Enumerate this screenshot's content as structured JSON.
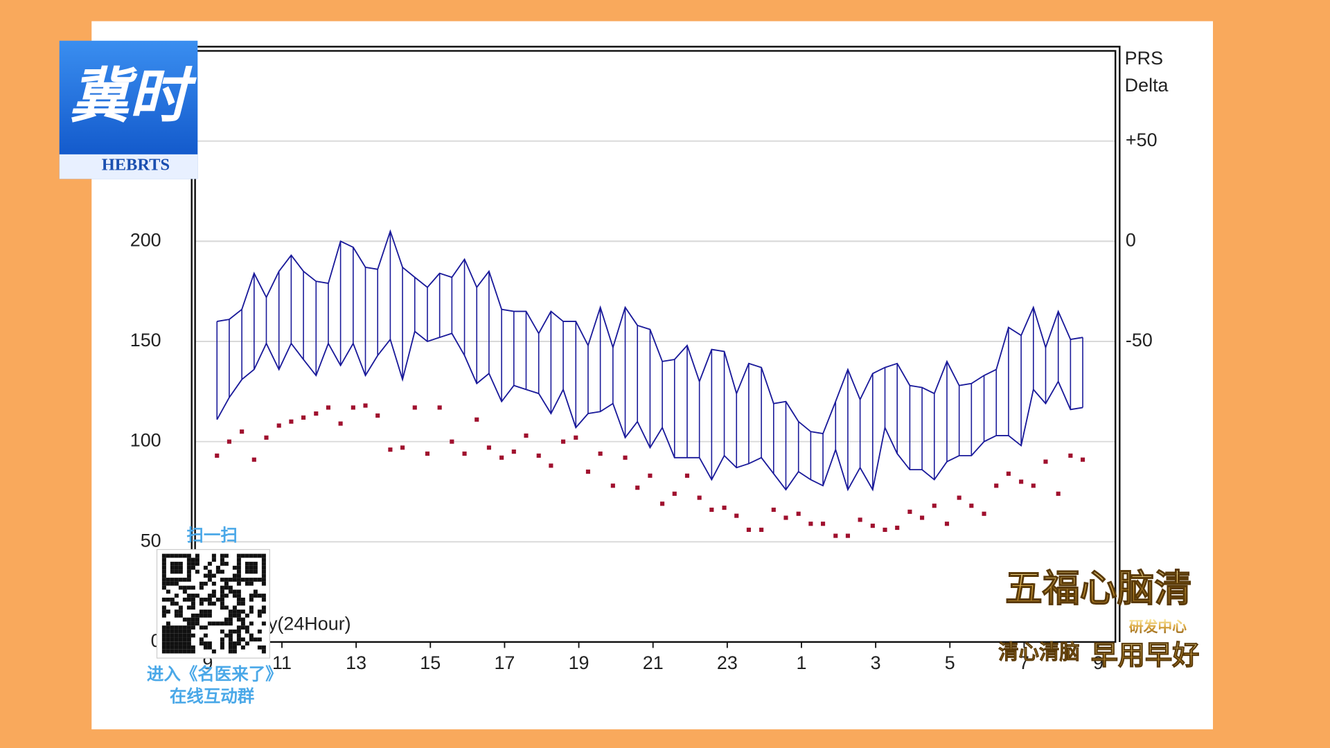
{
  "chart_data": {
    "type": "range",
    "x": [
      9.25,
      9.58,
      9.92,
      10.25,
      10.58,
      10.92,
      11.25,
      11.58,
      11.92,
      12.25,
      12.58,
      12.92,
      13.25,
      13.58,
      13.92,
      14.25,
      14.58,
      14.92,
      15.25,
      15.58,
      15.92,
      16.25,
      16.58,
      16.92,
      17.25,
      17.58,
      17.92,
      18.25,
      18.58,
      18.92,
      19.25,
      19.58,
      19.92,
      20.25,
      20.58,
      20.92,
      21.25,
      21.58,
      21.92,
      22.25,
      22.58,
      22.92,
      23.25,
      23.58,
      23.92,
      24.25,
      24.58,
      24.92,
      25.25,
      25.58,
      25.92,
      26.25,
      26.58,
      26.92,
      27.25,
      27.58,
      27.92,
      28.25,
      28.58,
      28.92,
      29.25,
      29.58,
      29.92,
      30.25,
      30.58,
      30.92,
      31.25,
      31.58,
      31.92,
      32.25,
      32.58
    ],
    "series": [
      {
        "color": "#1a1a9a",
        "values": [
          160,
          161,
          166,
          184,
          172,
          185,
          193,
          185,
          180,
          179,
          200,
          197,
          187,
          186,
          205,
          187,
          182,
          177,
          184,
          182,
          191,
          177,
          185,
          166,
          165,
          165,
          154,
          165,
          160,
          160,
          148,
          167,
          147,
          167,
          158,
          156,
          140,
          141,
          148,
          130,
          146,
          145,
          124,
          139,
          137,
          119,
          120,
          110,
          105,
          104,
          120,
          136,
          121,
          134,
          137,
          139,
          128,
          127,
          124,
          140,
          128,
          129,
          133,
          136,
          157,
          153,
          167,
          147,
          165,
          151,
          152
        ]
      },
      {
        "color": "#1a1a9a",
        "values": [
          111,
          122,
          131,
          136,
          149,
          136,
          149,
          141,
          133,
          149,
          138,
          149,
          133,
          143,
          151,
          131,
          155,
          150,
          152,
          154,
          143,
          129,
          134,
          120,
          128,
          126,
          124,
          114,
          126,
          107,
          114,
          115,
          119,
          102,
          110,
          97,
          107,
          92,
          92,
          92,
          81,
          93,
          87,
          89,
          92,
          84,
          76,
          85,
          81,
          78,
          96,
          76,
          87,
          76,
          107,
          94,
          86,
          86,
          81,
          90,
          93,
          93,
          100,
          103,
          103,
          98,
          126,
          119,
          130,
          116,
          117
        ]
      },
      {
        "color": "#a0102e",
        "values": [
          93,
          100,
          105,
          91,
          102,
          108,
          110,
          112,
          114,
          117,
          109,
          117,
          118,
          113,
          96,
          97,
          117,
          94,
          117,
          100,
          94,
          111,
          97,
          92,
          95,
          103,
          93,
          88,
          100,
          102,
          85,
          94,
          78,
          92,
          77,
          83,
          69,
          74,
          83,
          72,
          66,
          67,
          63,
          56,
          56,
          66,
          62,
          64,
          59,
          59,
          53,
          53,
          61,
          58,
          56,
          57,
          65,
          62,
          68,
          59,
          72,
          68,
          64,
          78,
          84,
          80,
          78,
          90,
          74,
          93,
          91
        ]
      }
    ],
    "xlim": [
      8.66,
      33.46
    ],
    "xticks": [
      9,
      11,
      13,
      15,
      17,
      19,
      21,
      23,
      {
        "value": 25,
        "label": "1"
      },
      {
        "value": 27,
        "label": "3"
      },
      {
        "value": 29,
        "label": "5"
      },
      {
        "value": 31,
        "label": "7"
      },
      {
        "value": 33,
        "label": "9"
      }
    ],
    "ylim": [
      0,
      295
    ],
    "yticks": [
      0,
      50,
      100,
      150,
      200
    ],
    "y2lim": [
      -200,
      95
    ],
    "y2ticks": [
      {
        "value": 50,
        "label": "+50"
      },
      0,
      -50
    ],
    "y2_label": [
      "PRS",
      "Delta"
    ],
    "x_label": "y(24Hour)",
    "grid": true
  },
  "overlays": {
    "logo": "冀时",
    "logo_sub": "HEBRTS",
    "scan": "扫一扫",
    "group_line1": "进入《名医来了》",
    "group_line2": "在线互动群",
    "ad_title": "五福心脑清",
    "ad_sub": "研发中心",
    "ad_slogan1": "清心清脑",
    "ad_slogan2": "早用早好"
  }
}
